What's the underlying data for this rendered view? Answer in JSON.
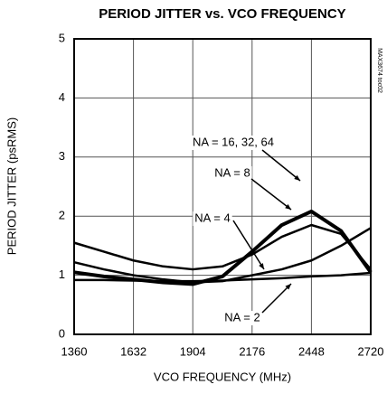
{
  "chart_data": {
    "type": "line",
    "title": "PERIOD JITTER vs. VCO FREQUENCY",
    "x_label": "VCO FREQUENCY (MHz)",
    "y_label": "PERIOD JITTER (psRMS)",
    "note": "MAX3674 toc02",
    "x": [
      1360,
      1496,
      1632,
      1768,
      1904,
      2040,
      2176,
      2312,
      2448,
      2584,
      2720
    ],
    "series": [
      {
        "name": "NA = 16, 32, 64",
        "color": "#000000",
        "values": [
          1.05,
          0.98,
          0.93,
          0.88,
          0.85,
          0.98,
          1.4,
          1.85,
          2.08,
          1.75,
          1.05
        ]
      },
      {
        "name": "NA = 8",
        "color": "#000000",
        "values": [
          1.55,
          1.4,
          1.25,
          1.15,
          1.1,
          1.15,
          1.35,
          1.65,
          1.85,
          1.7,
          1.1
        ]
      },
      {
        "name": "NA = 4",
        "color": "#000000",
        "values": [
          1.22,
          1.1,
          1.0,
          0.93,
          0.88,
          0.9,
          1.0,
          1.1,
          1.25,
          1.5,
          1.8
        ]
      },
      {
        "name": "NA = 2",
        "color": "#000000",
        "values": [
          0.92,
          0.92,
          0.91,
          0.9,
          0.9,
          0.91,
          0.93,
          0.95,
          0.98,
          1.0,
          1.04
        ]
      }
    ],
    "xlim": [
      1360,
      2720
    ],
    "xticks": [
      1360,
      1632,
      1904,
      2176,
      2448,
      2720
    ],
    "ylim": [
      0,
      5
    ],
    "yticks": [
      0,
      1,
      2,
      3,
      4,
      5
    ],
    "grid": true
  }
}
